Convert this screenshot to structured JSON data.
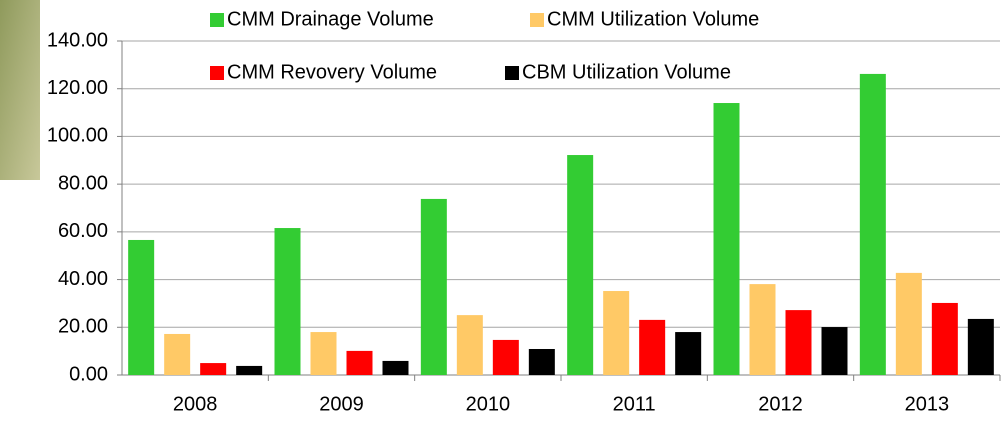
{
  "chart_data": {
    "type": "bar",
    "categories": [
      "2008",
      "2009",
      "2010",
      "2011",
      "2012",
      "2013"
    ],
    "series": [
      {
        "name": "CMM Drainage Volume",
        "color": "#33cc33",
        "values": [
          56.6,
          61.6,
          73.8,
          92.2,
          114.0,
          126.2
        ]
      },
      {
        "name": "CMM Utilization Volume",
        "color": "#ffc966",
        "values": [
          17.2,
          18.0,
          25.1,
          35.2,
          38.1,
          42.8
        ]
      },
      {
        "name": "CMM Revovery Volume",
        "color": "#ff0000",
        "values": [
          5.0,
          10.1,
          14.7,
          23.1,
          27.2,
          30.2
        ]
      },
      {
        "name": "CBM Utilization Volume",
        "color": "#000000",
        "values": [
          3.8,
          5.9,
          10.9,
          18.0,
          20.1,
          23.5
        ]
      }
    ],
    "ylim": [
      0,
      140
    ],
    "yticks": [
      {
        "value": 0,
        "label": "0.00"
      },
      {
        "value": 20,
        "label": "20.00"
      },
      {
        "value": 40,
        "label": "40.00"
      },
      {
        "value": 60,
        "label": "60.00"
      },
      {
        "value": 80,
        "label": "80.00"
      },
      {
        "value": 100,
        "label": "100.00"
      },
      {
        "value": 120,
        "label": "120.00"
      },
      {
        "value": 140,
        "label": "140.00"
      }
    ],
    "grid": true,
    "legend": "top"
  }
}
